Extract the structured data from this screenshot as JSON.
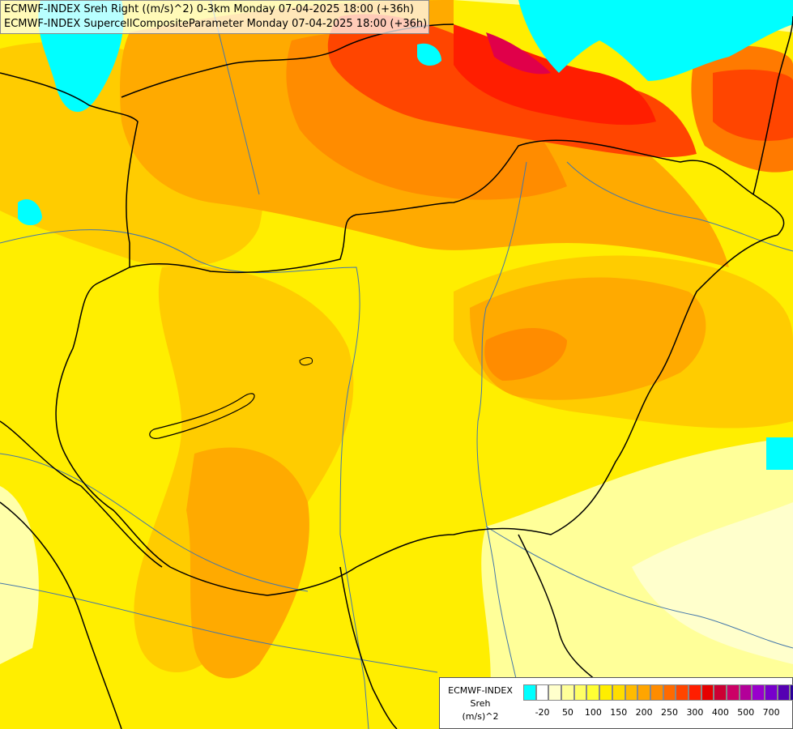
{
  "title": {
    "line1": "ECMWF-INDEX Sreh Right ((m/s)^2) 0-3km Monday 07-04-2025 18:00 (+36h)",
    "line2": "ECMWF-INDEX SupercellCompositeParameter Monday 07-04-2025 18:00 (+36h)"
  },
  "legend": {
    "model": "ECMWF-INDEX",
    "variable": "Sreh",
    "unit": "(m/s)^2",
    "swatch_colors": [
      "#00ffff",
      "#ffffff",
      "#ffffcc",
      "#ffff99",
      "#ffff66",
      "#ffff33",
      "#ffee00",
      "#ffdd00",
      "#ffbb00",
      "#ffa500",
      "#ff8c00",
      "#ff6a00",
      "#ff4500",
      "#ff1e00",
      "#e60000",
      "#cc0033",
      "#cc0066",
      "#b30099",
      "#9900cc",
      "#7700cc",
      "#5500b3",
      "#2a0099",
      "#000080"
    ],
    "tick_labels": [
      "-20",
      "50",
      "100",
      "150",
      "200",
      "250",
      "300",
      "400",
      "500",
      "700"
    ]
  },
  "colors": {
    "cyan": "#00ffff",
    "pale": "#ffffcc",
    "light_yellow": "#ffff99",
    "yellow": "#ffee00",
    "gold": "#ffcc00",
    "orange_light": "#ffaa00",
    "orange": "#ff8c00",
    "orange_dark": "#ff6a00",
    "red": "#ff2a00",
    "magenta": "#e0004a",
    "border": "#000000",
    "river": "#4477aa"
  }
}
